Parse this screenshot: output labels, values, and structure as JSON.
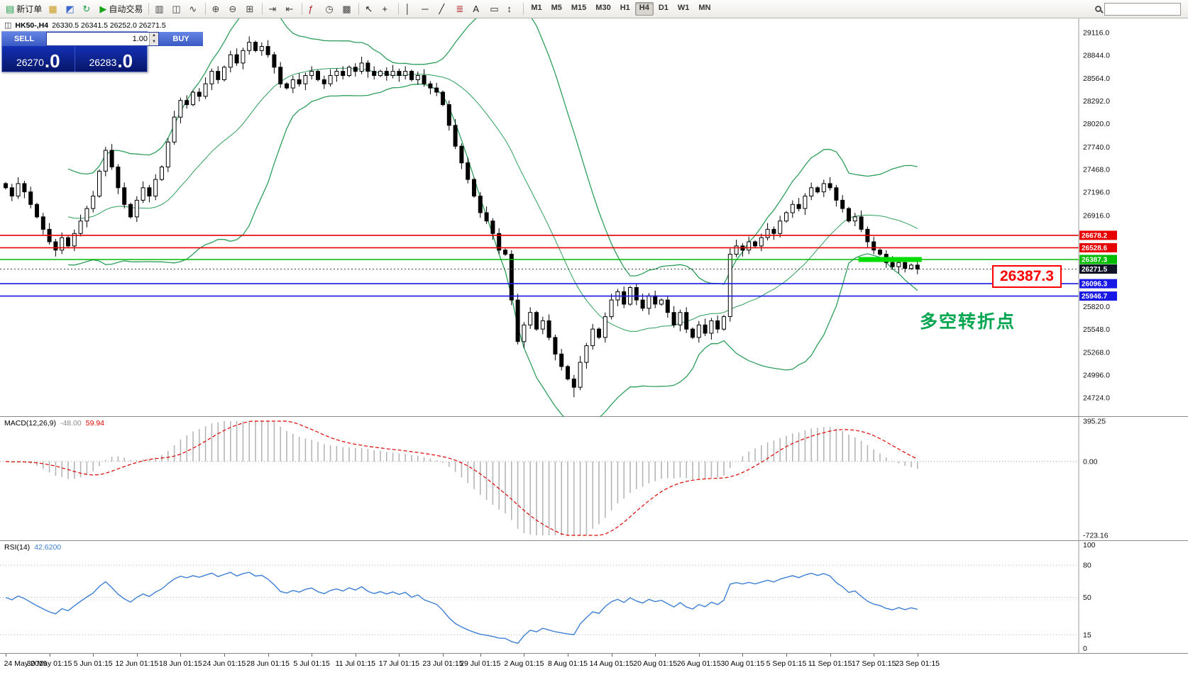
{
  "toolbar": {
    "items": [
      {
        "type": "button",
        "name": "new-order",
        "glyph": "▤",
        "glyph_color": "#1a9e4a",
        "label": "新订单"
      },
      {
        "type": "button",
        "name": "open-chart",
        "glyph": "▦",
        "glyph_color": "#c99a1c",
        "label": ""
      },
      {
        "type": "button",
        "name": "profiles",
        "glyph": "◩",
        "glyph_color": "#3d66cc",
        "label": ""
      },
      {
        "type": "button",
        "name": "refresh",
        "glyph": "↻",
        "glyph_color": "#1a9e4a",
        "label": ""
      },
      {
        "type": "button",
        "name": "auto-trading",
        "glyph": "▶",
        "glyph_color": "#18a518",
        "label": "自动交易"
      },
      {
        "type": "sep"
      },
      {
        "type": "button",
        "name": "bar-chart-mode",
        "glyph": "▥",
        "glyph_color": "#444444",
        "label": ""
      },
      {
        "type": "button",
        "name": "candlestick-mode",
        "glyph": "◫",
        "glyph_color": "#444444",
        "label": ""
      },
      {
        "type": "button",
        "name": "line-chart-mode",
        "glyph": "∿",
        "glyph_color": "#444444",
        "label": ""
      },
      {
        "type": "sep"
      },
      {
        "type": "button",
        "name": "zoom-in",
        "glyph": "⊕",
        "glyph_color": "#444444",
        "label": ""
      },
      {
        "type": "button",
        "name": "zoom-out",
        "glyph": "⊖",
        "glyph_color": "#444444",
        "label": ""
      },
      {
        "type": "button",
        "name": "tile-windows",
        "glyph": "⊞",
        "glyph_color": "#444444",
        "label": ""
      },
      {
        "type": "sep"
      },
      {
        "type": "button",
        "name": "auto-scroll",
        "glyph": "⇥",
        "glyph_color": "#444444",
        "label": ""
      },
      {
        "type": "button",
        "name": "chart-shift",
        "glyph": "⇤",
        "glyph_color": "#444444",
        "label": ""
      },
      {
        "type": "sep"
      },
      {
        "type": "button",
        "name": "indicators",
        "glyph": "ƒ",
        "glyph_color": "#b02020",
        "label": ""
      },
      {
        "type": "button",
        "name": "periods",
        "glyph": "◷",
        "glyph_color": "#444444",
        "label": ""
      },
      {
        "type": "button",
        "name": "templates",
        "glyph": "▩",
        "glyph_color": "#444444",
        "label": ""
      },
      {
        "type": "sep"
      },
      {
        "type": "button",
        "name": "cursor",
        "glyph": "↖",
        "glyph_color": "#222222",
        "label": ""
      },
      {
        "type": "button",
        "name": "crosshair",
        "glyph": "+",
        "glyph_color": "#222222",
        "label": ""
      },
      {
        "type": "sep"
      },
      {
        "type": "button",
        "name": "vertical-line",
        "glyph": "│",
        "glyph_color": "#222222",
        "label": ""
      },
      {
        "type": "button",
        "name": "horizontal-line",
        "glyph": "─",
        "glyph_color": "#222222",
        "label": ""
      },
      {
        "type": "button",
        "name": "trendline",
        "glyph": "╱",
        "glyph_color": "#222222",
        "label": ""
      },
      {
        "type": "button",
        "name": "fibonacci",
        "glyph": "≣",
        "glyph_color": "#b02020",
        "label": ""
      },
      {
        "type": "button",
        "name": "text-tool",
        "glyph": "A",
        "glyph_color": "#222222",
        "label": ""
      },
      {
        "type": "button",
        "name": "label-tool",
        "glyph": "▭",
        "glyph_color": "#222222",
        "label": ""
      },
      {
        "type": "button",
        "name": "arrows-tool",
        "glyph": "↕",
        "glyph_color": "#222222",
        "label": ""
      },
      {
        "type": "sep"
      }
    ],
    "timeframes": {
      "options": [
        "M1",
        "M5",
        "M15",
        "M30",
        "H1",
        "H4",
        "D1",
        "W1",
        "MN"
      ],
      "active": "H4"
    }
  },
  "symbol_bar": {
    "symbol": "HK50-,H4",
    "ohlc": "26330.5 26341.5 26252.0 26271.5"
  },
  "trade_panel": {
    "sell_label": "SELL",
    "buy_label": "BUY",
    "volume": "1.00",
    "sell_price_main": "26270",
    "sell_price_frac": ".0",
    "buy_price_main": "26283",
    "buy_price_frac": ".0"
  },
  "chart_data": {
    "type": "candlestick",
    "title": "HK50-,H4",
    "ohlc_line": {
      "open": "26330.5",
      "high": "26341.5",
      "low": "26252.0",
      "close": "26271.5"
    },
    "first_open": 27300,
    "closes": [
      27250,
      27150,
      27300,
      27200,
      27050,
      26900,
      26750,
      26600,
      26500,
      26650,
      26550,
      26700,
      26850,
      27000,
      27150,
      27450,
      27700,
      27500,
      27250,
      27050,
      26900,
      27100,
      27250,
      27150,
      27350,
      27500,
      27800,
      28100,
      28300,
      28250,
      28400,
      28350,
      28500,
      28650,
      28550,
      28700,
      28850,
      28750,
      28900,
      29000,
      28900,
      28950,
      28850,
      28700,
      28500,
      28450,
      28550,
      28500,
      28600,
      28650,
      28550,
      28500,
      28600,
      28650,
      28600,
      28700,
      28650,
      28750,
      28650,
      28600,
      28650,
      28600,
      28650,
      28600,
      28650,
      28550,
      28600,
      28500,
      28450,
      28400,
      28250,
      28000,
      27750,
      27550,
      27350,
      27150,
      26950,
      26850,
      26700,
      26500,
      26450,
      25900,
      25400,
      25600,
      25750,
      25550,
      25650,
      25450,
      25250,
      25100,
      24950,
      24850,
      25150,
      25350,
      25550,
      25450,
      25700,
      25900,
      26000,
      25850,
      26050,
      25900,
      25800,
      25950,
      25850,
      25900,
      25750,
      25600,
      25750,
      25550,
      25450,
      25600,
      25500,
      25650,
      25550,
      25700,
      26450,
      26550,
      26500,
      26600,
      26550,
      26650,
      26750,
      26700,
      26850,
      26950,
      27050,
      27000,
      27150,
      27250,
      27200,
      27300,
      27250,
      27100,
      27000,
      26850,
      26900,
      26750,
      26600,
      26500,
      26450,
      26350,
      26300,
      26350,
      26280,
      26320,
      26271.5
    ],
    "wick_overrides": {
      "16": [
        27740,
        null
      ],
      "39": [
        29070,
        null
      ],
      "91": [
        null,
        24730
      ],
      "116": [
        26520,
        null
      ]
    },
    "bollinger": {
      "period": 20,
      "deviation": 2
    },
    "y_axis_anchor": {
      "top_price": 29116,
      "bottom_price": 24724
    },
    "y_ticks": [
      "29116.0",
      "28844.0",
      "28564.0",
      "28292.0",
      "28020.0",
      "27740.0",
      "27468.0",
      "27196.0",
      "26916.0",
      "25820.0",
      "25548.0",
      "25268.0",
      "24996.0",
      "24724.0"
    ],
    "hlines": [
      {
        "price": 26678.2,
        "color": "#e60000",
        "label": "26678.2"
      },
      {
        "price": 26528.6,
        "color": "#e60000",
        "label": "26528.6"
      },
      {
        "price": 26387.3,
        "color": "#00bb00",
        "label": "26387.3"
      },
      {
        "price": 26096.3,
        "color": "#1919e6",
        "label": "26096.3"
      },
      {
        "price": 25946.7,
        "color": "#1919e6",
        "label": "25946.7"
      }
    ],
    "current_price": {
      "value": 26271.5,
      "label": "26271.5"
    },
    "highlight_segment": {
      "price": 26387.3,
      "from_candle": 137,
      "to_candle": 146
    },
    "big_price_label": "26387.3",
    "annotation": "多空转折点",
    "x_labels": [
      {
        "idx": 0,
        "text": "24 May 2019"
      },
      {
        "idx": 7,
        "text": "30 May 01:15"
      },
      {
        "idx": 14,
        "text": "5 Jun 01:15"
      },
      {
        "idx": 21,
        "text": "12 Jun 01:15"
      },
      {
        "idx": 28,
        "text": "18 Jun 01:15"
      },
      {
        "idx": 35,
        "text": "24 Jun 01:15"
      },
      {
        "idx": 42,
        "text": "28 Jun 01:15"
      },
      {
        "idx": 49,
        "text": "5 Jul 01:15"
      },
      {
        "idx": 56,
        "text": "11 Jul 01:15"
      },
      {
        "idx": 63,
        "text": "17 Jul 01:15"
      },
      {
        "idx": 70,
        "text": "23 Jul 01:15"
      },
      {
        "idx": 76,
        "text": "29 Jul 01:15"
      },
      {
        "idx": 83,
        "text": "2 Aug 01:15"
      },
      {
        "idx": 90,
        "text": "8 Aug 01:15"
      },
      {
        "idx": 97,
        "text": "14 Aug 01:15"
      },
      {
        "idx": 104,
        "text": "20 Aug 01:15"
      },
      {
        "idx": 111,
        "text": "26 Aug 01:15"
      },
      {
        "idx": 118,
        "text": "30 Aug 01:15"
      },
      {
        "idx": 125,
        "text": "5 Sep 01:15"
      },
      {
        "idx": 132,
        "text": "11 Sep 01:15"
      },
      {
        "idx": 139,
        "text": "17 Sep 01:15"
      },
      {
        "idx": 146,
        "text": "23 Sep 01:15"
      }
    ],
    "macd": {
      "name": "MACD(12,26,9)",
      "value_main": "-48.00",
      "value_signal": "59.94",
      "fast": 12,
      "slow": 26,
      "signal": 9,
      "ticks": [
        {
          "v": 395.25,
          "text": "395.25"
        },
        {
          "v": 0,
          "text": "0.00"
        },
        {
          "v": -723.16,
          "text": "-723.16"
        }
      ],
      "range": [
        -723.16,
        395.25
      ]
    },
    "rsi": {
      "name": "RSI(14)",
      "value": "42.6200",
      "period": 14,
      "levels": [
        80,
        50,
        15
      ],
      "ticks": [
        {
          "v": 100,
          "text": "100"
        },
        {
          "v": 80,
          "text": "80"
        },
        {
          "v": 50,
          "text": "50"
        },
        {
          "v": 15,
          "text": "15"
        },
        {
          "v": 0,
          "text": "0"
        }
      ]
    },
    "colors": {
      "band": "#2e9e5b",
      "candle_up": "#ffffff",
      "candle_down": "#000000",
      "candle_border": "#000000",
      "macd_bar": "#b6b6b6",
      "macd_signal": "#e00000",
      "rsi_line": "#3e7fd4",
      "current_tag_bg": "#111426",
      "highlight_green": "#00dd00"
    }
  }
}
